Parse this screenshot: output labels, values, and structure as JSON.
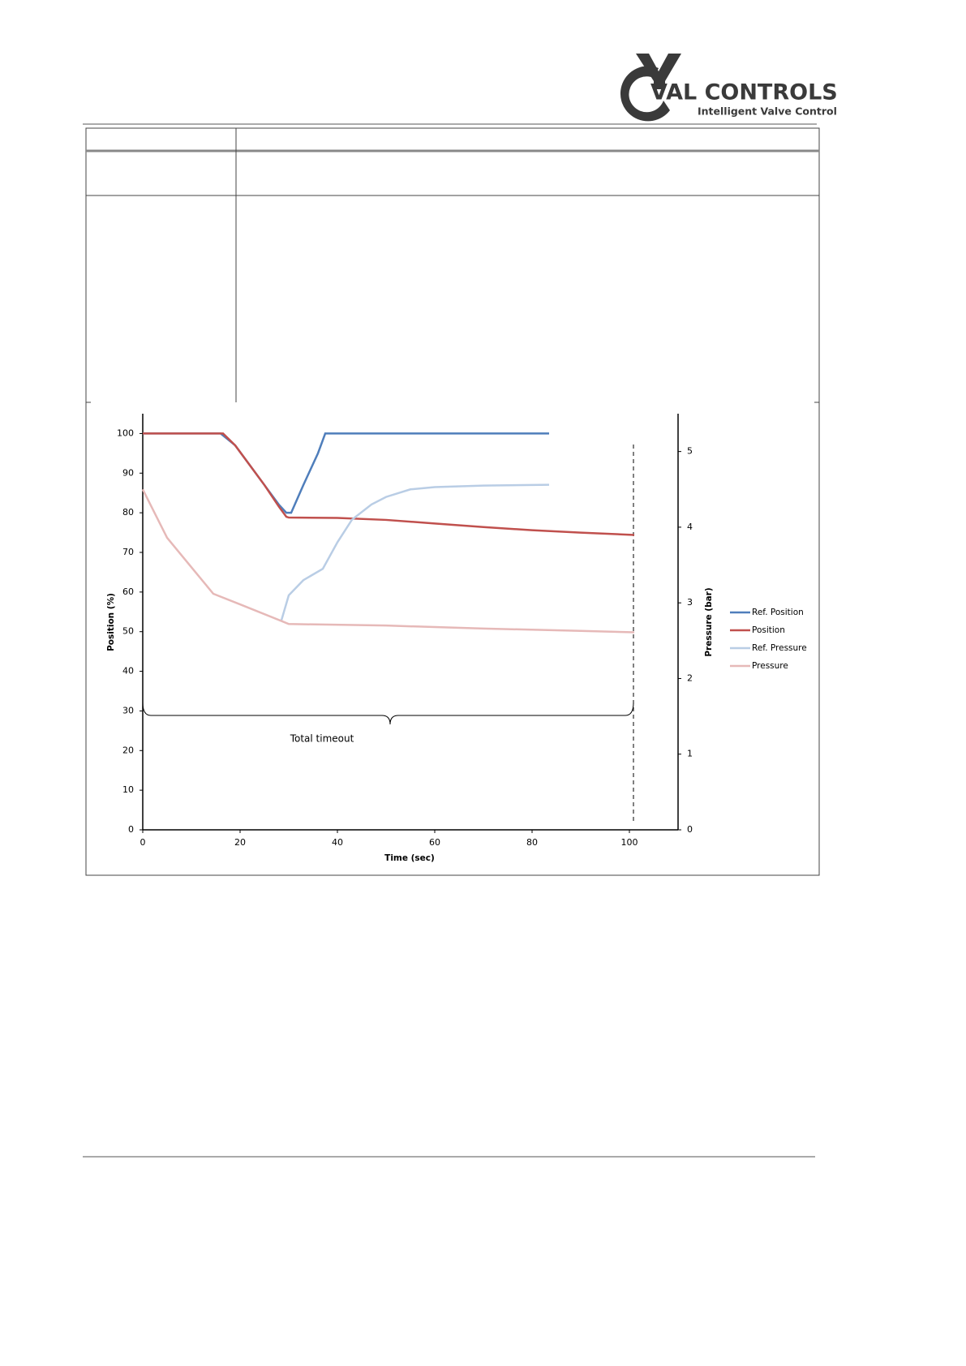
{
  "header": {
    "logo": {
      "name": "VAL CONTROLS",
      "tagline": "Intelligent Valve Control"
    }
  },
  "chart_data": {
    "type": "line",
    "x_label": "Time (sec)",
    "y_label": "Position (%)",
    "y2_label": "Pressure (bar)",
    "annotation": "Total timeout",
    "xlim": [
      0,
      110
    ],
    "xticks": [
      0,
      20,
      40,
      60,
      80,
      100
    ],
    "ylim": [
      0,
      105
    ],
    "yticks": [
      0,
      10,
      20,
      30,
      40,
      50,
      60,
      70,
      80,
      90,
      100
    ],
    "y2lim": [
      0,
      5.5
    ],
    "y2ticks": [
      0,
      1,
      2,
      3,
      4,
      5
    ],
    "series": [
      {
        "name": "Ref. Position",
        "color": "#4f7ebb",
        "x": [
          0,
          16,
          19,
          22,
          25,
          28,
          29.5,
          30.5,
          33,
          36,
          37.5,
          83.5
        ],
        "values": [
          100,
          100,
          97,
          92,
          87,
          82,
          80,
          80,
          87,
          95,
          100,
          100
        ]
      },
      {
        "name": "Position",
        "color": "#c0504d",
        "x": [
          0,
          16.5,
          19,
          22,
          25,
          28,
          29.5,
          30,
          40,
          50,
          60,
          70,
          80,
          90,
          101
        ],
        "values": [
          100,
          100,
          97,
          92,
          87,
          81.5,
          79,
          78.8,
          78.7,
          78.2,
          77.3,
          76.4,
          75.6,
          75,
          74.4
        ]
      },
      {
        "name": "Ref. Pressure",
        "color": "#b9cde5",
        "axis": "y2",
        "x": [
          28.5,
          30,
          33,
          37,
          40,
          43,
          47,
          50,
          55,
          60,
          70,
          83.5
        ],
        "values": [
          2.77,
          3.1,
          3.3,
          3.45,
          3.8,
          4.1,
          4.3,
          4.4,
          4.5,
          4.53,
          4.55,
          4.56
        ]
      },
      {
        "name": "Pressure",
        "color": "#e6b9b8",
        "axis": "y2",
        "x": [
          0,
          5,
          10,
          14.5,
          20,
          28.5,
          30,
          50,
          70,
          90,
          101
        ],
        "values": [
          4.5,
          3.86,
          3.47,
          3.12,
          2.98,
          2.76,
          2.72,
          2.7,
          2.66,
          2.63,
          2.61
        ]
      }
    ]
  }
}
